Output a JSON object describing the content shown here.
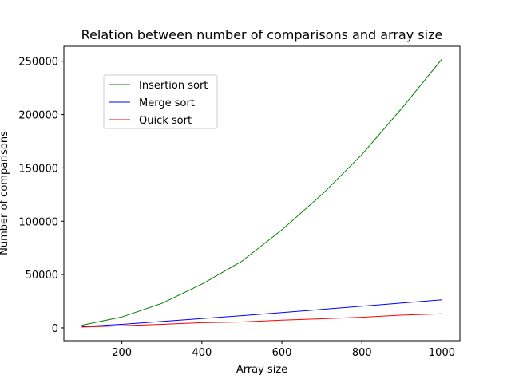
{
  "chart_data": {
    "type": "line",
    "title": "Relation between number of comparisons and array size",
    "xlabel": "Array size",
    "ylabel": "Number of comparisons",
    "x": [
      100,
      200,
      300,
      400,
      500,
      600,
      700,
      800,
      900,
      1000
    ],
    "xlim": [
      55,
      1045
    ],
    "ylim": [
      -12000,
      264000
    ],
    "xticks": [
      200,
      400,
      600,
      800,
      1000
    ],
    "yticks": [
      0,
      50000,
      100000,
      150000,
      200000,
      250000
    ],
    "grid": false,
    "legend_position": "upper-left",
    "series": [
      {
        "name": "Insertion sort",
        "color": "#008000",
        "values": [
          2500,
          10200,
          23000,
          41000,
          62500,
          92000,
          125000,
          162500,
          206000,
          252000
        ]
      },
      {
        "name": "Merge sort",
        "color": "#0000ff",
        "values": [
          1300,
          3300,
          6000,
          8800,
          11500,
          14300,
          17300,
          20300,
          23300,
          26300
        ]
      },
      {
        "name": "Quick sort",
        "color": "#ff0000",
        "values": [
          700,
          2000,
          3300,
          4900,
          5600,
          7300,
          8600,
          10000,
          12000,
          13300
        ]
      }
    ]
  }
}
